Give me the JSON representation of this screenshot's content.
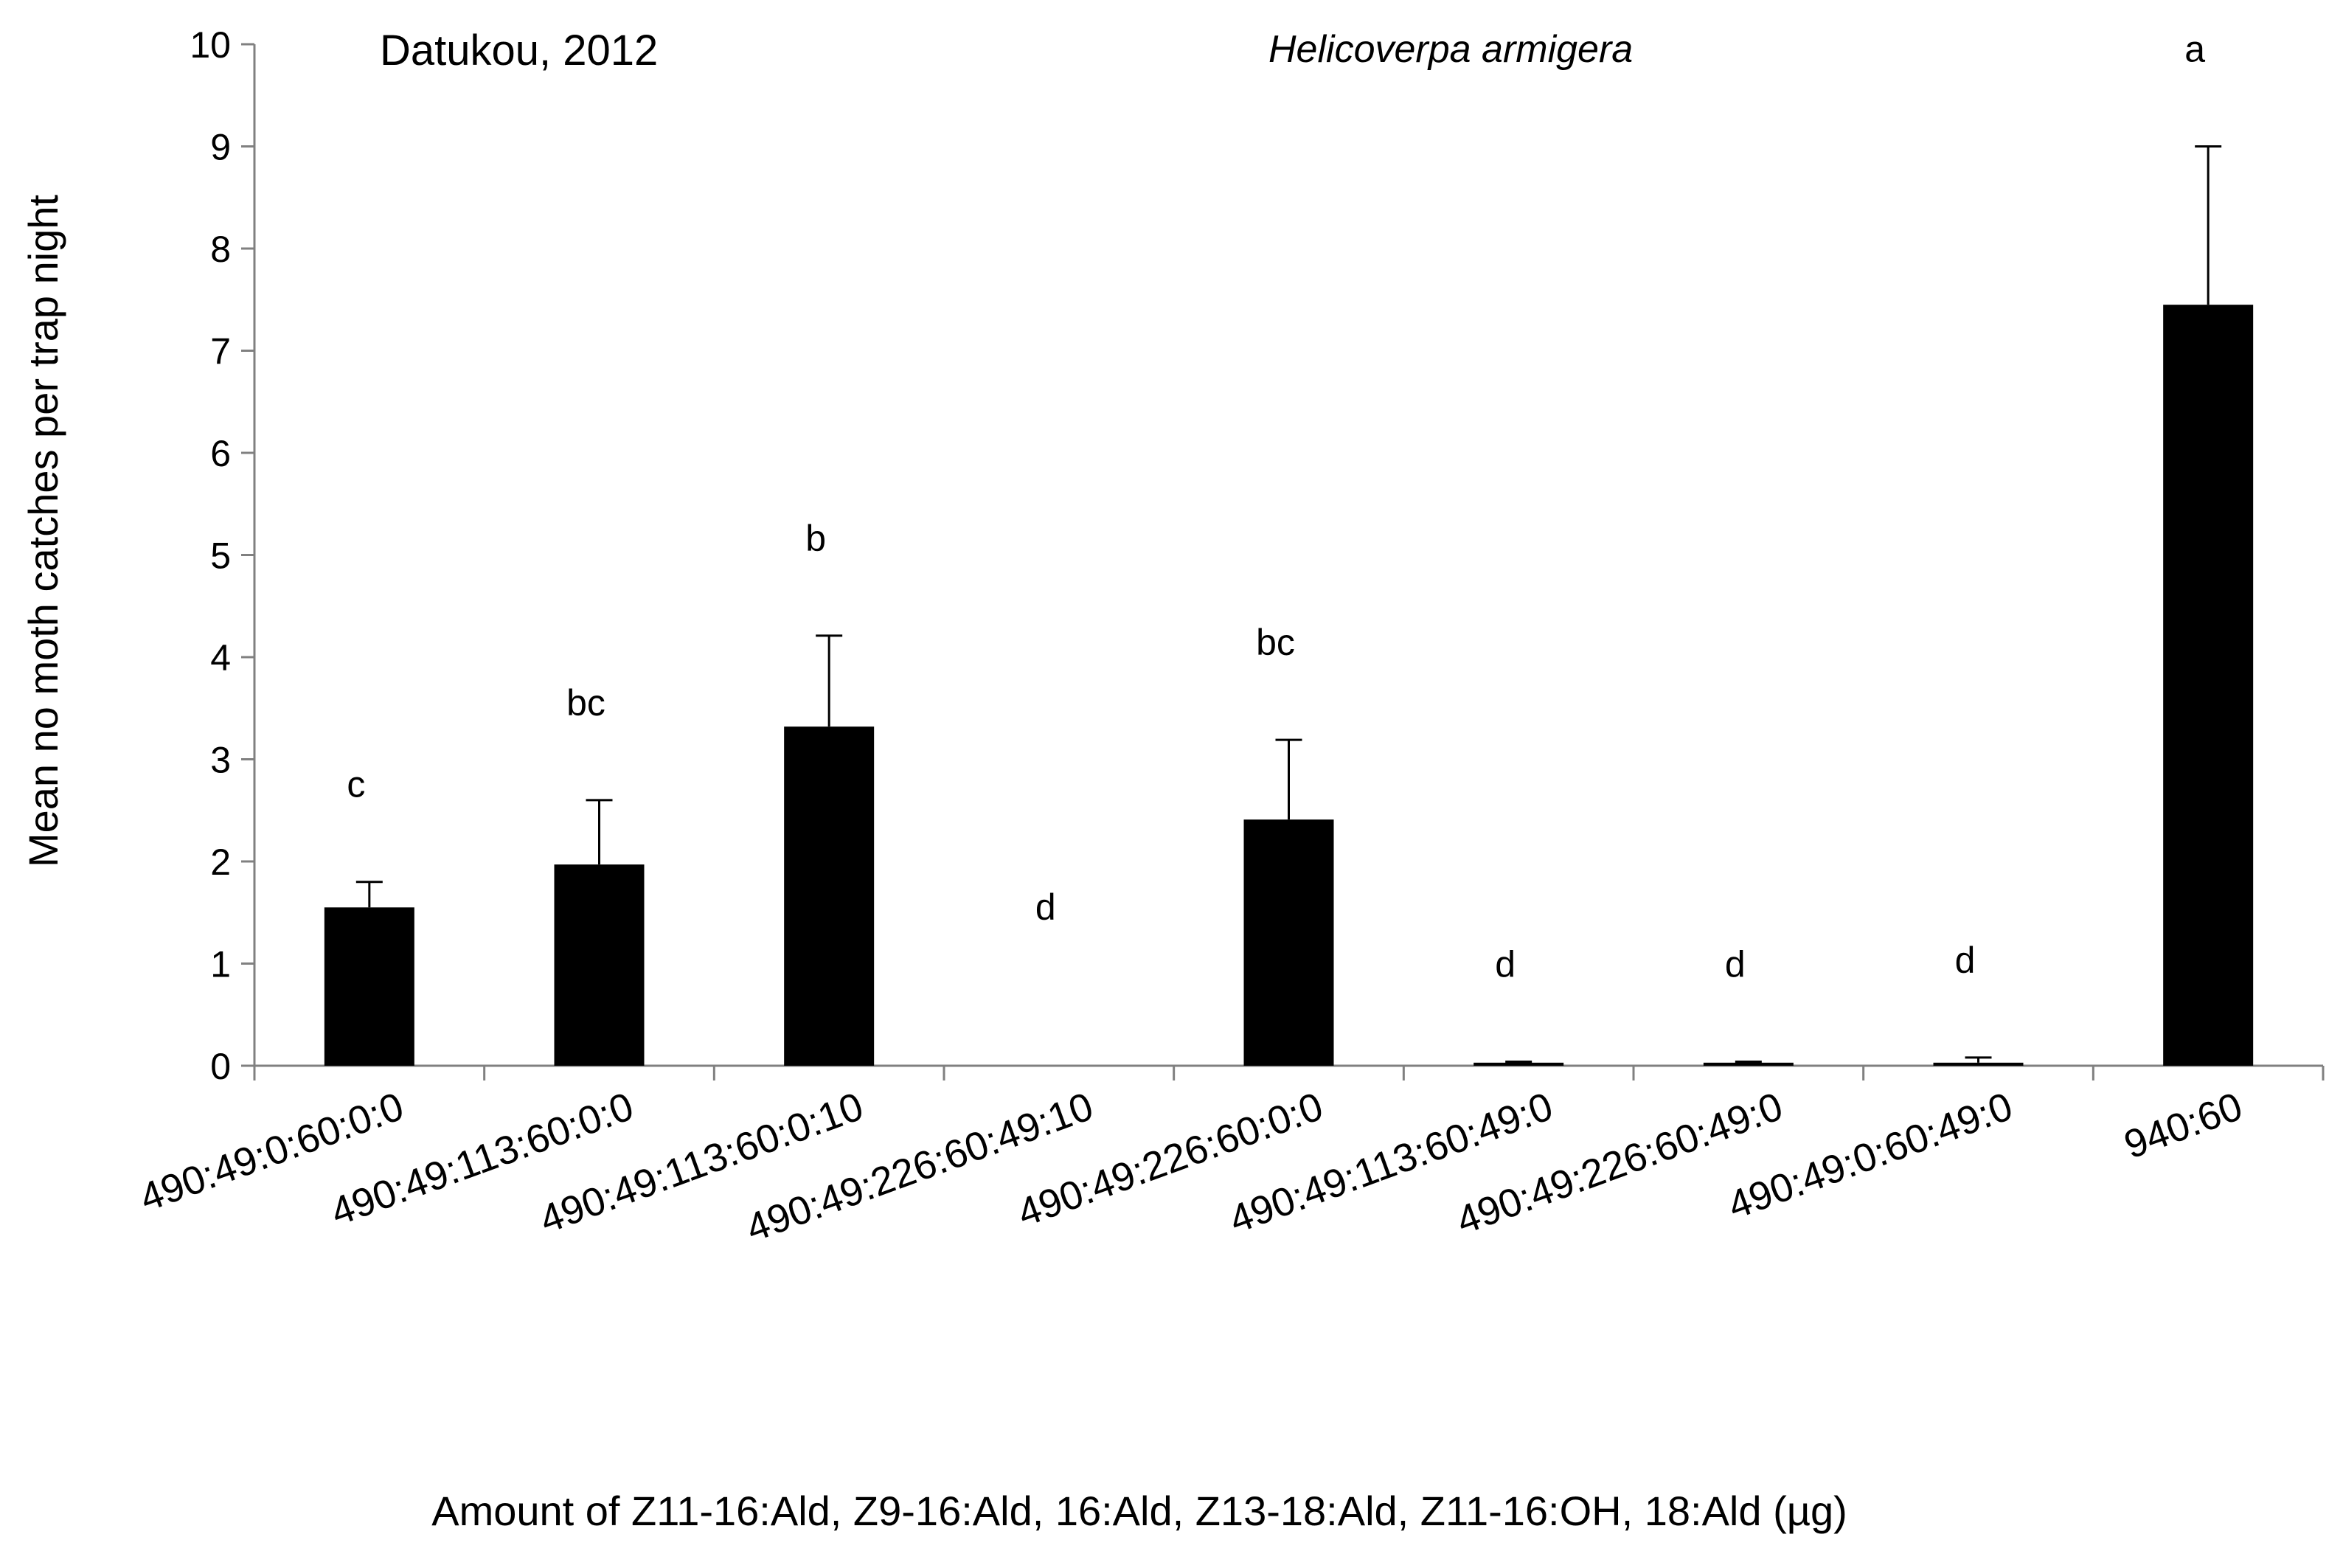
{
  "chart_data": {
    "type": "bar",
    "annotation_left": "Datukou, 2012",
    "annotation_right": "Helicoverpa armigera",
    "ylabel": "Mean no moth catches per trap night",
    "xlabel": "Amount of Z11-16:Ald, Z9-16:Ald, 16:Ald, Z13-18:Ald, Z11-16:OH, 18:Ald (µg)",
    "ylim": [
      0,
      10
    ],
    "yticks": [
      "0",
      "1",
      "2",
      "3",
      "4",
      "5",
      "6",
      "7",
      "8",
      "9",
      "10"
    ],
    "grid": false,
    "bar_color": "#000000",
    "categories": [
      "490:49:0:60:0:0",
      "490:49:113:60:0:0",
      "490:49:113:60:0:10",
      "490:49:226:60:49:10",
      "490:49:226:60:0:0",
      "490:49:113:60:49:0",
      "490:49:226:60:49:0",
      "490:49:0:60:49:0",
      "940:60"
    ],
    "values": [
      1.55,
      1.97,
      3.32,
      0,
      2.41,
      0.03,
      0.03,
      0.03,
      7.45
    ],
    "error_upper": [
      1.8,
      2.6,
      4.21,
      0,
      3.19,
      0.04,
      0.04,
      0.08,
      9.0
    ],
    "sig_labels": [
      "c",
      "bc",
      "b",
      "d",
      "bc",
      "d",
      "d",
      "d",
      "a"
    ]
  }
}
